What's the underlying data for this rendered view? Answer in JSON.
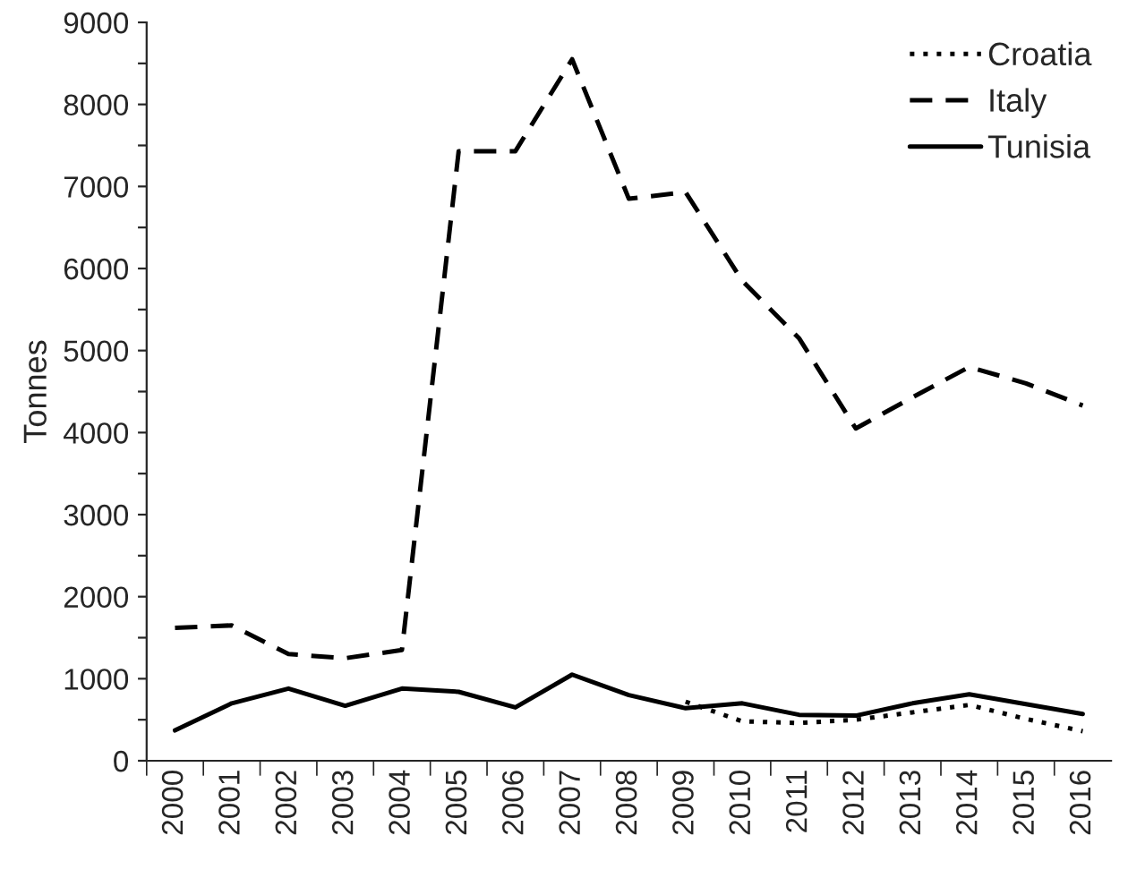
{
  "chart_data": {
    "type": "line",
    "ylabel": "Tonnes",
    "categories": [
      "2000",
      "2001",
      "2002",
      "2003",
      "2004",
      "2005",
      "2006",
      "2007",
      "2008",
      "2009",
      "2010",
      "2011",
      "2012",
      "2013",
      "2014",
      "2015",
      "2016"
    ],
    "series": [
      {
        "name": "Croatia",
        "color": "#000000",
        "line_style": "dotted",
        "values": [
          null,
          null,
          null,
          null,
          null,
          null,
          null,
          null,
          null,
          720,
          480,
          460,
          500,
          590,
          680,
          510,
          360
        ]
      },
      {
        "name": "Italy",
        "color": "#000000",
        "line_style": "dashed",
        "values": [
          1620,
          1650,
          1300,
          1250,
          1350,
          7430,
          7430,
          8550,
          6850,
          6930,
          5850,
          5150,
          4050,
          4430,
          4800,
          4600,
          4330
        ]
      },
      {
        "name": "Tunisia",
        "color": "#000000",
        "line_style": "solid",
        "values": [
          370,
          700,
          880,
          670,
          880,
          840,
          650,
          1050,
          800,
          640,
          700,
          560,
          550,
          700,
          810,
          690,
          570
        ]
      }
    ],
    "ylim": [
      0,
      9000
    ],
    "yticks": [
      0,
      {
        "value": 500,
        "label": null
      },
      1000,
      {
        "value": 1500,
        "label": null
      },
      2000,
      {
        "value": 2500,
        "label": null
      },
      3000,
      {
        "value": 3500,
        "label": null
      },
      4000,
      {
        "value": 4500,
        "label": null
      },
      5000,
      {
        "value": 5500,
        "label": null
      },
      6000,
      {
        "value": 6500,
        "label": null
      },
      7000,
      {
        "value": 7500,
        "label": null
      },
      8000,
      {
        "value": 8500,
        "label": null
      },
      9000
    ],
    "grid": false,
    "legend": "top right"
  }
}
